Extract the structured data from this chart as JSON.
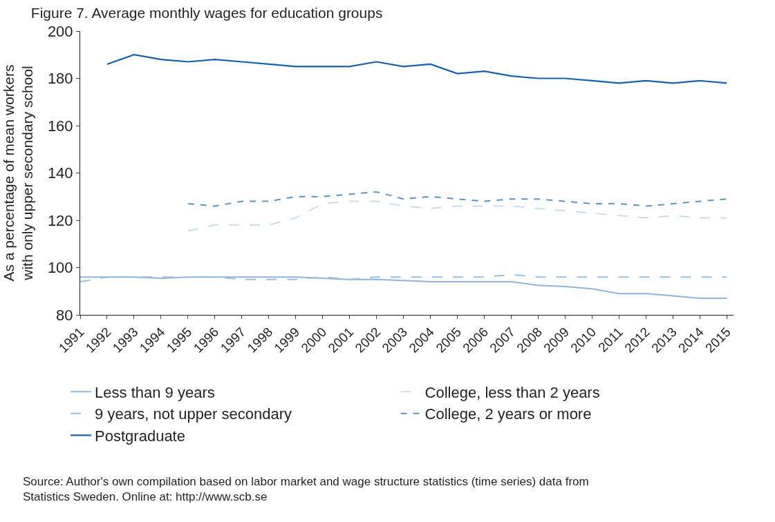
{
  "chart_data": {
    "type": "line",
    "title": "Figure 7. Average monthly wages for education groups",
    "ylabel": "As a percentage of mean workers\nwith only upper secondary school",
    "categories": [
      "1991",
      "1992",
      "1993",
      "1994",
      "1995",
      "1996",
      "1997",
      "1998",
      "1999",
      "2000",
      "2001",
      "2002",
      "2003",
      "2004",
      "2005",
      "2006",
      "2007",
      "2008",
      "2009",
      "2010",
      "2011",
      "2012",
      "2013",
      "2014",
      "2015"
    ],
    "ylim": [
      80,
      200
    ],
    "yticks": [
      80,
      100,
      120,
      140,
      160,
      180,
      200
    ],
    "legend": "bottom",
    "marker": "none",
    "series": [
      {
        "name": "Less than 9 years",
        "color": "#8fb4dc",
        "line_style": "solid",
        "values": [
          96,
          96,
          96,
          95.5,
          96,
          96,
          96,
          96,
          96,
          95.5,
          95,
          95,
          94.5,
          94,
          94,
          94,
          94,
          92.5,
          92,
          91,
          89,
          89,
          88,
          87,
          87
        ]
      },
      {
        "name": "9 years, not upper secondary",
        "color": "#9bbfe0",
        "line_style": "dashed",
        "values": [
          94,
          96,
          96,
          96,
          96,
          96,
          95,
          95,
          95,
          96,
          95,
          96,
          96,
          96,
          96,
          96,
          97,
          96,
          96,
          96,
          96,
          96,
          96,
          96,
          96
        ]
      },
      {
        "name": "College, less than 2 years",
        "color": "#c6dcef",
        "line_style": "dashed",
        "values": [
          null,
          null,
          null,
          null,
          115.5,
          118,
          118,
          118,
          121,
          127,
          128,
          128,
          126,
          125,
          126,
          126,
          126,
          125,
          124,
          123,
          122,
          121,
          122,
          121,
          121
        ]
      },
      {
        "name": "College, 2 years or more",
        "color": "#5b93c9",
        "line_style": "dotted",
        "values": [
          null,
          null,
          null,
          null,
          127,
          126,
          128,
          128,
          130,
          130,
          131,
          132,
          129,
          130,
          129,
          128,
          129,
          129,
          128,
          127,
          127,
          126,
          127,
          128,
          129
        ]
      },
      {
        "name": "Postgraduate",
        "color": "#1560b0",
        "line_style": "solid",
        "values": [
          null,
          186,
          190,
          188,
          187,
          188,
          187,
          186,
          185,
          185,
          185,
          187,
          185,
          186,
          182,
          183,
          181,
          180,
          180,
          179,
          178,
          179,
          178,
          179,
          178
        ]
      }
    ],
    "annotations": [
      "Source: Author's own compilation based on labor market and wage structure statistics (time series) data from\nStatistics Sweden. Online at: http://www.scb.se"
    ]
  }
}
